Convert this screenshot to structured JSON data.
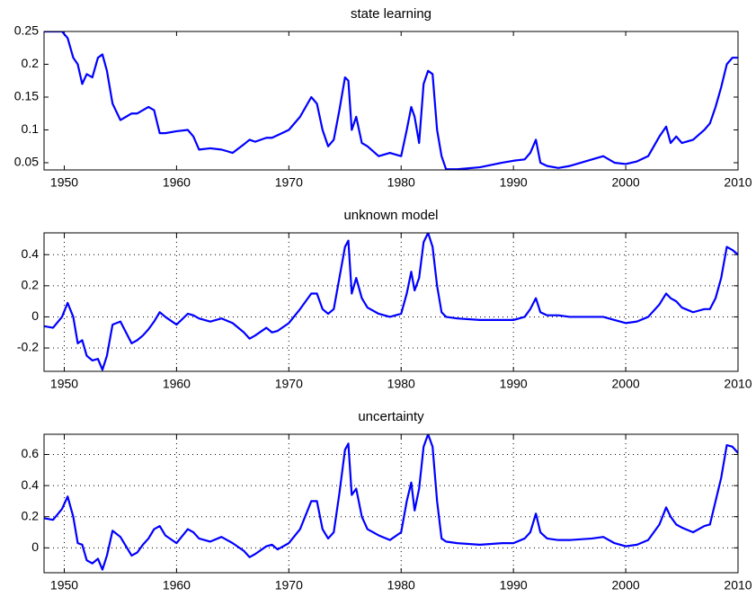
{
  "chart_data": [
    {
      "type": "line",
      "title": "state learning",
      "grid": false,
      "xlim": [
        1948.2,
        2010
      ],
      "ylim": [
        0.039,
        0.25
      ],
      "xticks": [
        1950,
        1960,
        1970,
        1980,
        1990,
        2000,
        2010
      ],
      "yticks": [
        0.05,
        0.1,
        0.15,
        0.2,
        0.25
      ],
      "x": [
        1948.2,
        1949,
        1949.8,
        1950.3,
        1950.8,
        1951.2,
        1951.6,
        1952,
        1952.5,
        1953,
        1953.4,
        1953.8,
        1954.3,
        1955,
        1955.5,
        1956,
        1956.5,
        1957,
        1957.5,
        1958,
        1958.5,
        1959,
        1960,
        1961,
        1961.5,
        1962,
        1963,
        1964,
        1965,
        1966,
        1966.5,
        1967,
        1968,
        1968.5,
        1969,
        1970,
        1971,
        1972,
        1972.5,
        1973,
        1973.5,
        1974,
        1974.5,
        1975,
        1975.3,
        1975.6,
        1976,
        1976.5,
        1977,
        1978,
        1979,
        1980,
        1980.5,
        1980.9,
        1981.2,
        1981.6,
        1982,
        1982.4,
        1982.8,
        1983.2,
        1983.6,
        1984,
        1985,
        1987,
        1989,
        1990,
        1991,
        1991.5,
        1992,
        1992.4,
        1993,
        1994,
        1995,
        1997,
        1998,
        1999,
        2000,
        2001,
        2002,
        2003,
        2003.6,
        2004,
        2004.5,
        2005,
        2006,
        2007,
        2007.5,
        2008,
        2008.5,
        2009,
        2009.5,
        2010
      ],
      "series": [
        {
          "color": "#0000ff",
          "values": [
            0.25,
            0.25,
            0.25,
            0.24,
            0.21,
            0.2,
            0.17,
            0.185,
            0.18,
            0.21,
            0.215,
            0.19,
            0.14,
            0.115,
            0.12,
            0.125,
            0.125,
            0.13,
            0.135,
            0.13,
            0.095,
            0.095,
            0.098,
            0.1,
            0.09,
            0.07,
            0.072,
            0.07,
            0.065,
            0.078,
            0.085,
            0.082,
            0.088,
            0.088,
            0.092,
            0.1,
            0.12,
            0.15,
            0.14,
            0.1,
            0.075,
            0.085,
            0.13,
            0.18,
            0.175,
            0.1,
            0.12,
            0.08,
            0.075,
            0.06,
            0.065,
            0.06,
            0.1,
            0.135,
            0.12,
            0.08,
            0.17,
            0.19,
            0.185,
            0.1,
            0.06,
            0.04,
            0.04,
            0.043,
            0.05,
            0.053,
            0.055,
            0.065,
            0.085,
            0.05,
            0.045,
            0.042,
            0.045,
            0.055,
            0.06,
            0.05,
            0.048,
            0.052,
            0.06,
            0.09,
            0.105,
            0.08,
            0.09,
            0.08,
            0.085,
            0.1,
            0.11,
            0.135,
            0.165,
            0.2,
            0.21,
            0.21
          ]
        }
      ]
    },
    {
      "type": "line",
      "title": "unknown model",
      "grid": true,
      "xlim": [
        1948.2,
        2010
      ],
      "ylim": [
        -0.35,
        0.54
      ],
      "xticks": [
        1950,
        1960,
        1970,
        1980,
        1990,
        2000,
        2010
      ],
      "yticks": [
        -0.2,
        0,
        0.2,
        0.4
      ],
      "x": [
        1948.2,
        1949,
        1949.8,
        1950.3,
        1950.8,
        1951.2,
        1951.6,
        1952,
        1952.5,
        1953,
        1953.4,
        1953.8,
        1954.3,
        1955,
        1955.5,
        1956,
        1956.5,
        1957,
        1957.5,
        1958,
        1958.5,
        1959,
        1960,
        1961,
        1961.5,
        1962,
        1963,
        1964,
        1965,
        1966,
        1966.5,
        1967,
        1968,
        1968.5,
        1969,
        1970,
        1971,
        1972,
        1972.5,
        1973,
        1973.5,
        1974,
        1974.5,
        1975,
        1975.3,
        1975.6,
        1976,
        1976.5,
        1977,
        1978,
        1979,
        1980,
        1980.5,
        1980.9,
        1981.2,
        1981.6,
        1982,
        1982.4,
        1982.8,
        1983.2,
        1983.6,
        1984,
        1985,
        1987,
        1989,
        1990,
        1991,
        1991.5,
        1992,
        1992.4,
        1993,
        1994,
        1995,
        1997,
        1998,
        1999,
        2000,
        2001,
        2002,
        2003,
        2003.6,
        2004,
        2004.5,
        2005,
        2006,
        2007,
        2007.5,
        2008,
        2008.5,
        2009,
        2009.5,
        2010
      ],
      "series": [
        {
          "color": "#0000ff",
          "values": [
            -0.06,
            -0.07,
            0.0,
            0.09,
            0.0,
            -0.17,
            -0.15,
            -0.25,
            -0.28,
            -0.27,
            -0.34,
            -0.25,
            -0.05,
            -0.03,
            -0.1,
            -0.17,
            -0.15,
            -0.12,
            -0.08,
            -0.03,
            0.03,
            0.0,
            -0.05,
            0.02,
            0.01,
            -0.01,
            -0.03,
            -0.01,
            -0.04,
            -0.1,
            -0.14,
            -0.12,
            -0.07,
            -0.1,
            -0.09,
            -0.04,
            0.05,
            0.15,
            0.15,
            0.05,
            0.02,
            0.05,
            0.25,
            0.45,
            0.49,
            0.15,
            0.25,
            0.12,
            0.06,
            0.02,
            0.0,
            0.02,
            0.15,
            0.29,
            0.17,
            0.25,
            0.48,
            0.54,
            0.45,
            0.2,
            0.03,
            0.0,
            -0.01,
            -0.02,
            -0.02,
            -0.02,
            0.0,
            0.05,
            0.12,
            0.03,
            0.01,
            0.01,
            0.0,
            0.0,
            0.0,
            -0.02,
            -0.04,
            -0.03,
            0.0,
            0.08,
            0.15,
            0.12,
            0.1,
            0.06,
            0.03,
            0.05,
            0.05,
            0.12,
            0.25,
            0.45,
            0.43,
            0.4
          ]
        }
      ]
    },
    {
      "type": "line",
      "title": "uncertainty",
      "grid": true,
      "xlim": [
        1948.2,
        2010
      ],
      "ylim": [
        -0.16,
        0.73
      ],
      "xticks": [
        1950,
        1960,
        1970,
        1980,
        1990,
        2000,
        2010
      ],
      "yticks": [
        0,
        0.2,
        0.4,
        0.6
      ],
      "x": [
        1948.2,
        1949,
        1949.8,
        1950.3,
        1950.8,
        1951.2,
        1951.6,
        1952,
        1952.5,
        1953,
        1953.4,
        1953.8,
        1954.3,
        1955,
        1955.5,
        1956,
        1956.5,
        1957,
        1957.5,
        1958,
        1958.5,
        1959,
        1960,
        1961,
        1961.5,
        1962,
        1963,
        1964,
        1965,
        1966,
        1966.5,
        1967,
        1968,
        1968.5,
        1969,
        1970,
        1971,
        1972,
        1972.5,
        1973,
        1973.5,
        1974,
        1974.5,
        1975,
        1975.3,
        1975.6,
        1976,
        1976.5,
        1977,
        1978,
        1979,
        1980,
        1980.5,
        1980.9,
        1981.2,
        1981.6,
        1982,
        1982.4,
        1982.8,
        1983.2,
        1983.6,
        1984,
        1985,
        1987,
        1989,
        1990,
        1991,
        1991.5,
        1992,
        1992.4,
        1993,
        1994,
        1995,
        1997,
        1998,
        1999,
        2000,
        2001,
        2002,
        2003,
        2003.6,
        2004,
        2004.5,
        2005,
        2006,
        2007,
        2007.5,
        2008,
        2008.5,
        2009,
        2009.5,
        2010
      ],
      "series": [
        {
          "color": "#0000ff",
          "values": [
            0.19,
            0.18,
            0.25,
            0.33,
            0.2,
            0.03,
            0.02,
            -0.08,
            -0.1,
            -0.07,
            -0.14,
            -0.05,
            0.11,
            0.07,
            0.01,
            -0.05,
            -0.03,
            0.02,
            0.06,
            0.12,
            0.14,
            0.08,
            0.03,
            0.12,
            0.1,
            0.06,
            0.04,
            0.07,
            0.03,
            -0.02,
            -0.06,
            -0.04,
            0.01,
            0.02,
            -0.01,
            0.03,
            0.12,
            0.3,
            0.3,
            0.12,
            0.06,
            0.1,
            0.35,
            0.63,
            0.67,
            0.34,
            0.38,
            0.2,
            0.12,
            0.08,
            0.05,
            0.1,
            0.3,
            0.42,
            0.24,
            0.38,
            0.65,
            0.73,
            0.65,
            0.3,
            0.06,
            0.04,
            0.03,
            0.02,
            0.03,
            0.03,
            0.06,
            0.1,
            0.22,
            0.1,
            0.06,
            0.05,
            0.05,
            0.06,
            0.07,
            0.03,
            0.01,
            0.02,
            0.05,
            0.15,
            0.26,
            0.2,
            0.15,
            0.13,
            0.1,
            0.14,
            0.15,
            0.3,
            0.45,
            0.66,
            0.65,
            0.61
          ]
        }
      ]
    }
  ]
}
